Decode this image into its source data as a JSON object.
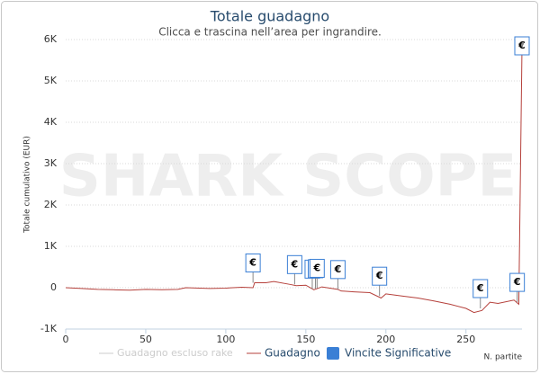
{
  "chart_data": {
    "type": "line",
    "title": "Totale guadagno",
    "subtitle": "Clicca e trascina nell’area per ingrandire.",
    "watermark": "SHARK SCOPE",
    "y_label": "Totale cumulativo (EUR)",
    "x_label": "N. partite",
    "xlim": [
      0,
      285
    ],
    "xticks": [
      0,
      50,
      100,
      150,
      200,
      250
    ],
    "ylim": [
      -1000,
      6000
    ],
    "yticks": [
      {
        "value": -1000,
        "label": "-1K"
      },
      0,
      {
        "value": 1000,
        "label": "1K"
      },
      {
        "value": 2000,
        "label": "2K"
      },
      {
        "value": 3000,
        "label": "3K"
      },
      {
        "value": 4000,
        "label": "4K"
      },
      {
        "value": 5000,
        "label": "5K"
      },
      {
        "value": 6000,
        "label": "6K"
      }
    ],
    "grid": true,
    "x": [
      0,
      10,
      20,
      30,
      40,
      50,
      60,
      70,
      75,
      90,
      100,
      110,
      117,
      118,
      125,
      130,
      140,
      144,
      150,
      155,
      160,
      170,
      172,
      180,
      190,
      197,
      200,
      210,
      220,
      230,
      240,
      250,
      255,
      260,
      265,
      270,
      280,
      283,
      285
    ],
    "series": [
      {
        "name": "Guadagno escluso rake",
        "color": "#cccccc",
        "visible": false
      },
      {
        "name": "Guadagno",
        "color": "#b5403b",
        "visible": true,
        "values": [
          0,
          -20,
          -40,
          -50,
          -60,
          -40,
          -50,
          -40,
          0,
          -20,
          -10,
          10,
          0,
          120,
          120,
          150,
          80,
          50,
          60,
          -50,
          20,
          -40,
          -80,
          -100,
          -120,
          -250,
          -150,
          -200,
          -250,
          -320,
          -400,
          -500,
          -600,
          -550,
          -350,
          -380,
          -300,
          -400,
          5800
        ]
      }
    ],
    "flags": {
      "name": "Vincite Significative",
      "color": "#3a7fd5",
      "symbol": "€",
      "x": [
        117,
        143,
        154,
        156,
        157,
        170,
        196,
        259,
        282,
        285
      ],
      "values": [
        120,
        80,
        -30,
        -20,
        -10,
        -40,
        -200,
        -500,
        -350,
        5800
      ]
    }
  }
}
